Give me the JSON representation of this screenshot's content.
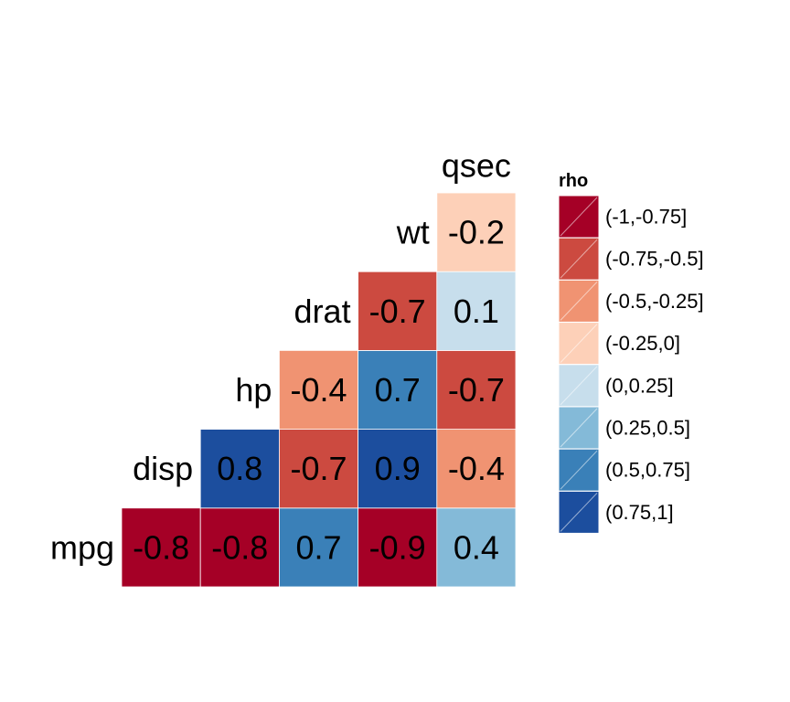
{
  "chart_data": {
    "type": "heatmap",
    "title": "",
    "variables": [
      "mpg",
      "disp",
      "hp",
      "drat",
      "wt",
      "qsec"
    ],
    "cells": [
      {
        "row": "disp",
        "col": "mpg",
        "value": -0.8,
        "label": "-0.8"
      },
      {
        "row": "hp",
        "col": "mpg",
        "value": -0.8,
        "label": "-0.8"
      },
      {
        "row": "hp",
        "col": "disp",
        "value": 0.8,
        "label": "0.8"
      },
      {
        "row": "drat",
        "col": "mpg",
        "value": 0.7,
        "label": "0.7"
      },
      {
        "row": "drat",
        "col": "disp",
        "value": -0.7,
        "label": "-0.7"
      },
      {
        "row": "drat",
        "col": "hp",
        "value": -0.4,
        "label": "-0.4"
      },
      {
        "row": "wt",
        "col": "mpg",
        "value": -0.9,
        "label": "-0.9"
      },
      {
        "row": "wt",
        "col": "disp",
        "value": 0.9,
        "label": "0.9"
      },
      {
        "row": "wt",
        "col": "hp",
        "value": 0.7,
        "label": "0.7"
      },
      {
        "row": "wt",
        "col": "drat",
        "value": -0.7,
        "label": "-0.7"
      },
      {
        "row": "qsec",
        "col": "mpg",
        "value": 0.4,
        "label": "0.4"
      },
      {
        "row": "qsec",
        "col": "disp",
        "value": -0.4,
        "label": "-0.4"
      },
      {
        "row": "qsec",
        "col": "hp",
        "value": -0.7,
        "label": "-0.7"
      },
      {
        "row": "qsec",
        "col": "drat",
        "value": 0.1,
        "label": "0.1"
      },
      {
        "row": "qsec",
        "col": "wt",
        "value": -0.2,
        "label": "-0.2"
      }
    ],
    "legend": {
      "title": "rho",
      "placement": "right",
      "bins": [
        {
          "label": "(-1,-0.75]",
          "min": -1,
          "max": -0.75,
          "color": "#A50026"
        },
        {
          "label": "(-0.75,-0.5]",
          "min": -0.75,
          "max": -0.5,
          "color": "#CC4A40"
        },
        {
          "label": "(-0.5,-0.25]",
          "min": -0.5,
          "max": -0.25,
          "color": "#F09372"
        },
        {
          "label": "(-0.25,0]",
          "min": -0.25,
          "max": 0,
          "color": "#FDD0B8"
        },
        {
          "label": "(0,0.25]",
          "min": 0,
          "max": 0.25,
          "color": "#C7DEEC"
        },
        {
          "label": "(0.25,0.5]",
          "min": 0.25,
          "max": 0.5,
          "color": "#84BAD8"
        },
        {
          "label": "(0.5,0.75]",
          "min": 0.5,
          "max": 0.75,
          "color": "#3A80B8"
        },
        {
          "label": "(0.75,1]",
          "min": 0.75,
          "max": 1,
          "color": "#1C4E9E"
        }
      ]
    }
  }
}
